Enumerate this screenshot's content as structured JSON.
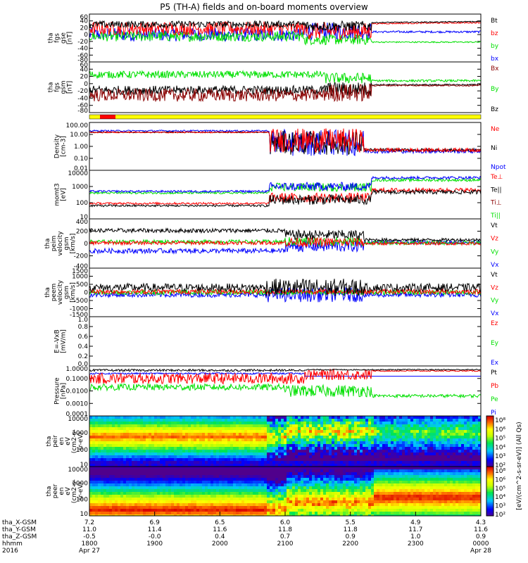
{
  "title": "P5 (TH-A) fields and on-board moments overview",
  "colors": {
    "black": "#000000",
    "red": "#ff0000",
    "green": "#00e000",
    "blue": "#0000ff",
    "darkred": "#8b0000",
    "yellow": "#ffff00"
  },
  "chart_data": [
    {
      "type": "line",
      "id": "fgs_gse",
      "ylabel": [
        "tha",
        "fgs",
        "gse",
        "[nT]"
      ],
      "ylim": [
        -80,
        60
      ],
      "yticks": [
        60,
        40,
        20,
        0,
        -20,
        -40,
        -60,
        -80
      ],
      "series": [
        {
          "name": "Bt",
          "color": "#000000"
        },
        {
          "name": "bz",
          "color": "#ff0000"
        },
        {
          "name": "by",
          "color": "#00e000"
        },
        {
          "name": "bx",
          "color": "#0000ff"
        }
      ]
    },
    {
      "type": "line",
      "id": "fgs_gsm",
      "ylabel": [
        "tha",
        "fgs",
        "gsm",
        "[nT]"
      ],
      "ylim": [
        -80,
        60
      ],
      "yticks": [
        60,
        40,
        20,
        0,
        -20,
        -40,
        -60,
        -80
      ],
      "series": [
        {
          "name": "Bx",
          "color": "#8b0000"
        },
        {
          "name": "By",
          "color": "#00e000"
        },
        {
          "name": "Bz",
          "color": "#000000"
        }
      ]
    },
    {
      "type": "line",
      "id": "density",
      "ylabel": [
        "Density",
        "[cm-3]"
      ],
      "scale": "log",
      "ylim": [
        0.01,
        100
      ],
      "yticks": [
        "100.00",
        "10.00",
        "1.00",
        "0.10",
        "0.01"
      ],
      "series": [
        {
          "name": "Ne",
          "color": "#ff0000"
        },
        {
          "name": "Ni",
          "color": "#000000"
        },
        {
          "name": "Npot",
          "color": "#0000ff"
        }
      ]
    },
    {
      "type": "line",
      "id": "temperature",
      "ylabel": [
        "momt3",
        "[eV]"
      ],
      "scale": "log",
      "ylim": [
        10,
        10000
      ],
      "yticks": [
        "10000",
        "1000",
        "100",
        "10"
      ],
      "series": [
        {
          "name": "Te⊥",
          "color": "#ff0000"
        },
        {
          "name": "Te||",
          "color": "#000000"
        },
        {
          "name": "Ti⊥",
          "color": "#8b0000"
        },
        {
          "name": "Ti||",
          "color": "#00e000"
        }
      ]
    },
    {
      "type": "line",
      "id": "ion_velocity",
      "ylabel": [
        "tha",
        "peim",
        "velocity",
        "gsm",
        "[km/s]"
      ],
      "ylim": [
        -400,
        400
      ],
      "yticks": [
        400,
        200,
        0,
        -200,
        -400
      ],
      "series": [
        {
          "name": "Vt",
          "color": "#000000"
        },
        {
          "name": "Vz",
          "color": "#ff0000"
        },
        {
          "name": "Vy",
          "color": "#00e000"
        },
        {
          "name": "Vx",
          "color": "#0000ff"
        }
      ]
    },
    {
      "type": "line",
      "id": "electron_velocity",
      "ylabel": [
        "tha",
        "peem",
        "velocity",
        "gsm",
        "[km/s]"
      ],
      "ylim": [
        -1500,
        1500
      ],
      "yticks": [
        1500,
        1000,
        500,
        0,
        -500,
        -1000,
        -1500
      ],
      "series": [
        {
          "name": "Vt",
          "color": "#000000"
        },
        {
          "name": "Vz",
          "color": "#ff0000"
        },
        {
          "name": "Vy",
          "color": "#00e000"
        },
        {
          "name": "Vx",
          "color": "#0000ff"
        }
      ]
    },
    {
      "type": "line",
      "id": "efield",
      "ylabel": [
        "E=-VxB",
        "[mV/m]"
      ],
      "ylim": [
        0,
        1
      ],
      "yticks": [
        "1.0",
        "0.8",
        "0.6",
        "0.4",
        "0.2",
        "0.0"
      ],
      "series": [
        {
          "name": "Ez",
          "color": "#ff0000"
        },
        {
          "name": "Ey",
          "color": "#00e000"
        },
        {
          "name": "Ex",
          "color": "#0000ff"
        }
      ]
    },
    {
      "type": "line",
      "id": "pressure",
      "ylabel": [
        "Pressure",
        "[nPa]"
      ],
      "scale": "log",
      "ylim": [
        0.0001,
        1
      ],
      "yticks": [
        "1.0000",
        "0.1000",
        "0.0100",
        "0.0010",
        "0.0001"
      ],
      "series": [
        {
          "name": "Pt",
          "color": "#000000"
        },
        {
          "name": "Pb",
          "color": "#ff0000"
        },
        {
          "name": "Pe",
          "color": "#00e000"
        },
        {
          "name": "Pi",
          "color": "#0000ff"
        }
      ]
    },
    {
      "type": "heatmap",
      "id": "ion_spectrogram",
      "ylabel": [
        "tha",
        "peir",
        "en",
        "eV",
        "(cm2-s-",
        "sr-eV)"
      ],
      "scale": "log",
      "ylim": [
        10,
        10000
      ],
      "yticks": [
        "10000",
        "1000",
        "100",
        "10"
      ]
    },
    {
      "type": "heatmap",
      "id": "electron_spectrogram",
      "ylabel": [
        "tha",
        "peer",
        "en",
        "eV",
        "(cm2-s-",
        "sr-eV)"
      ],
      "scale": "log",
      "ylim": [
        10,
        10000
      ],
      "yticks": [
        "10000",
        "1000",
        "100",
        "10"
      ]
    }
  ],
  "colorbar": {
    "label": "[eV/(cm^2-s-sr-eV)] (All Qs)",
    "upper_ticks": [
      "10⁸",
      "10⁶",
      "10⁵",
      "10⁴",
      "10³",
      "10²"
    ],
    "lower_ticks": [
      "10⁸",
      "10⁶",
      "10⁵",
      "10⁴",
      "10³",
      "10²"
    ]
  },
  "xaxis": {
    "rows": [
      {
        "label": "tha_X-GSM",
        "values": [
          "7.2",
          "6.9",
          "6.5",
          "6.0",
          "5.5",
          "4.9",
          "4.3"
        ]
      },
      {
        "label": "tha_Y-GSM",
        "values": [
          "11.0",
          "11.4",
          "11.6",
          "11.8",
          "11.8",
          "11.7",
          "11.6"
        ]
      },
      {
        "label": "tha_Z-GSM",
        "values": [
          "-0.5",
          "-0.0",
          "0.4",
          "0.7",
          "0.9",
          "1.0",
          "0.9"
        ]
      },
      {
        "label": "hhmm",
        "values": [
          "1800",
          "1900",
          "2000",
          "2100",
          "2200",
          "2300",
          "0000"
        ]
      }
    ],
    "year": "2016",
    "dates": [
      {
        "at": 0,
        "text": "Apr 27"
      },
      {
        "at": 6,
        "text": "Apr 28"
      }
    ]
  }
}
